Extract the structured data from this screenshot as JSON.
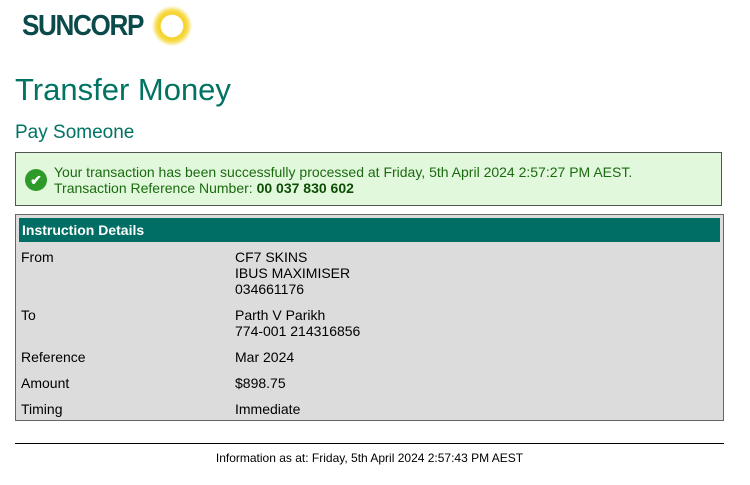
{
  "brand": {
    "name": "SUNCORP",
    "colors": {
      "primary": "#007363",
      "header": "#006e64",
      "success_bg": "#e2f8dc"
    }
  },
  "page": {
    "title": "Transfer Money",
    "subtitle": "Pay Someone"
  },
  "success": {
    "icon": "check-circle-icon",
    "message": "Your transaction has been successfully processed at Friday, 5th April 2024 2:57:27 PM AEST.",
    "ref_label": "Transaction Reference Number:",
    "ref_number": "00 037 830 602"
  },
  "details": {
    "header": "Instruction Details",
    "rows": [
      {
        "label": "From",
        "lines": [
          "CF7 SKINS",
          "IBUS MAXIMISER",
          "034661176"
        ]
      },
      {
        "label": "To",
        "lines": [
          "Parth V Parikh",
          "774-001 214316856"
        ]
      },
      {
        "label": "Reference",
        "lines": [
          "Mar 2024"
        ]
      },
      {
        "label": "Amount",
        "lines": [
          "$898.75"
        ]
      },
      {
        "label": "Timing",
        "lines": [
          "Immediate"
        ]
      }
    ]
  },
  "footer": {
    "text": "Information as at: Friday, 5th April 2024 2:57:43 PM AEST"
  }
}
